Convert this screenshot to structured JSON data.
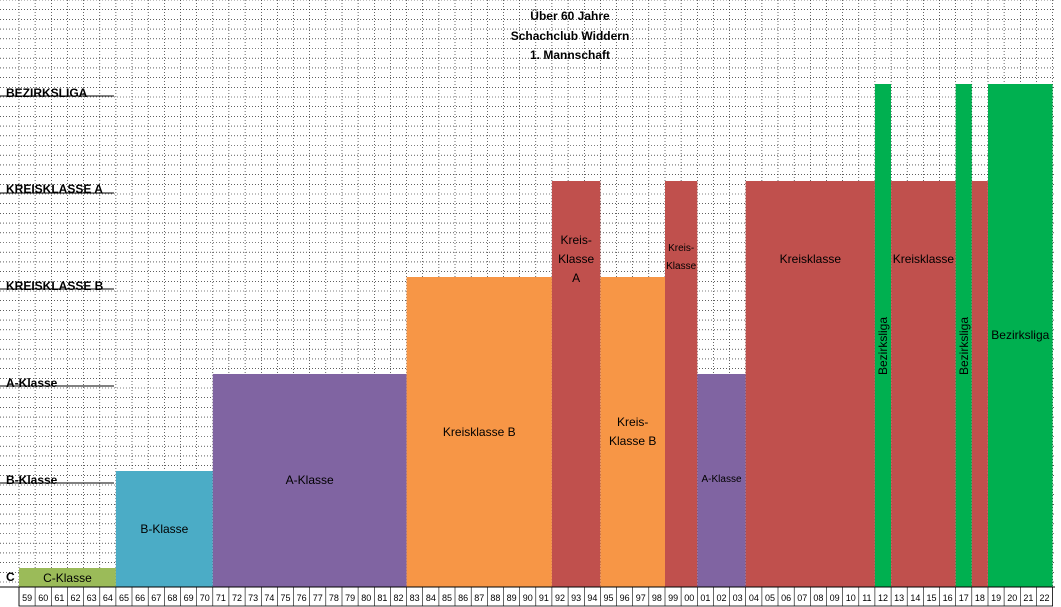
{
  "title_lines": [
    "Über 60 Jahre",
    "Schachclub Widdern",
    "1. Mannschaft"
  ],
  "chart_data": {
    "type": "bar",
    "levels": [
      {
        "key": "C",
        "label": "C",
        "rank": 1
      },
      {
        "key": "B",
        "label": "B-Klasse",
        "rank": 2
      },
      {
        "key": "A",
        "label": "A-Klasse",
        "rank": 3
      },
      {
        "key": "KB",
        "label": "KREISKLASSE B",
        "rank": 4
      },
      {
        "key": "KA",
        "label": "KREISKLASSE A",
        "rank": 5
      },
      {
        "key": "BZ",
        "label": "BEZIRKSLIGA",
        "rank": 6
      }
    ],
    "years": [
      "59",
      "60",
      "61",
      "62",
      "63",
      "64",
      "65",
      "66",
      "67",
      "68",
      "69",
      "70",
      "71",
      "72",
      "73",
      "74",
      "75",
      "76",
      "77",
      "78",
      "79",
      "80",
      "81",
      "82",
      "83",
      "84",
      "85",
      "86",
      "87",
      "88",
      "89",
      "90",
      "91",
      "92",
      "93",
      "94",
      "95",
      "96",
      "97",
      "98",
      "99",
      "00",
      "01",
      "02",
      "03",
      "04",
      "05",
      "06",
      "07",
      "08",
      "09",
      "10",
      "11",
      "12",
      "13",
      "14",
      "15",
      "16",
      "17",
      "18",
      "19",
      "20",
      "21",
      "22"
    ],
    "segments": [
      {
        "from": "59",
        "to": "64",
        "level": "C",
        "label": [
          "C-Klasse"
        ],
        "color": "#9bbb59"
      },
      {
        "from": "65",
        "to": "70",
        "level": "B",
        "label": [
          "B-Klasse"
        ],
        "color": "#4bacc6"
      },
      {
        "from": "71",
        "to": "82",
        "level": "A",
        "label": [
          "A-Klasse"
        ],
        "color": "#8064a2"
      },
      {
        "from": "83",
        "to": "91",
        "level": "KB",
        "label": [
          "Kreisklasse B"
        ],
        "color": "#f79646"
      },
      {
        "from": "92",
        "to": "94",
        "level": "KA",
        "label": [
          "Kreis-",
          "Klasse",
          "A"
        ],
        "color": "#c0504d"
      },
      {
        "from": "95",
        "to": "98",
        "level": "KB",
        "label": [
          "Kreis-",
          "Klasse B"
        ],
        "color": "#f79646"
      },
      {
        "from": "99",
        "to": "00",
        "level": "KA",
        "label": [
          "Kreis-",
          "Klasse"
        ],
        "color": "#c0504d",
        "small": true
      },
      {
        "from": "01",
        "to": "03",
        "level": "A",
        "label": [
          "A-Klasse"
        ],
        "color": "#8064a2",
        "small": true
      },
      {
        "from": "04",
        "to": "11",
        "level": "KA",
        "label": [
          "Kreisklasse"
        ],
        "color": "#c0504d"
      },
      {
        "from": "12",
        "to": "12",
        "level": "BZ",
        "label": [
          "Bezirksliga"
        ],
        "color": "#00b050",
        "vertical": true
      },
      {
        "from": "13",
        "to": "16",
        "level": "KA",
        "label": [
          "Kreisklasse"
        ],
        "color": "#c0504d"
      },
      {
        "from": "17",
        "to": "17",
        "level": "BZ",
        "label": [
          "Bezirksliga"
        ],
        "color": "#00b050",
        "vertical": true
      },
      {
        "from": "18",
        "to": "18",
        "level": "KA",
        "label": [],
        "color": "#c0504d"
      },
      {
        "from": "19",
        "to": "22",
        "level": "BZ",
        "label": [
          "Bezirksliga"
        ],
        "color": "#00b050"
      }
    ],
    "grid": true
  }
}
